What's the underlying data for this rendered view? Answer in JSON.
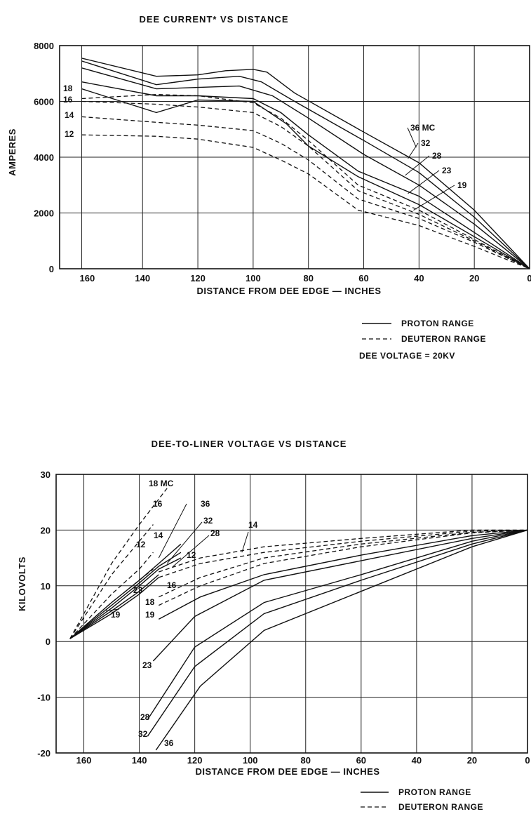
{
  "chart_data": [
    {
      "type": "line",
      "title": "DEE CURRENT* VS DISTANCE",
      "xlabel": "DISTANCE FROM DEE EDGE — INCHES",
      "ylabel": "AMPERES",
      "xlim": [
        170,
        0
      ],
      "ylim": [
        0,
        8000
      ],
      "xticks": [
        160,
        140,
        120,
        100,
        80,
        60,
        40,
        20,
        0
      ],
      "yticks": [
        0,
        2000,
        4000,
        6000,
        8000
      ],
      "grid": true,
      "legend": {
        "position": "below-right",
        "entries": [
          {
            "style": "solid",
            "label": "PROTON RANGE"
          },
          {
            "style": "dashed",
            "label": "DEUTERON RANGE"
          }
        ],
        "note": "DEE VOLTAGE = 20KV"
      },
      "series": [
        {
          "name": "36 MC",
          "style": "solid",
          "x": [
            162,
            135,
            120,
            110,
            100,
            95,
            85,
            60,
            40,
            20,
            0
          ],
          "y": [
            7550,
            6900,
            6950,
            7100,
            7150,
            7050,
            6300,
            4900,
            3800,
            2100,
            0
          ]
        },
        {
          "name": "32",
          "style": "solid",
          "x": [
            162,
            135,
            120,
            105,
            97,
            85,
            60,
            40,
            20,
            0
          ],
          "y": [
            7450,
            6600,
            6800,
            6900,
            6700,
            6000,
            4600,
            3450,
            1850,
            0
          ]
        },
        {
          "name": "28",
          "style": "solid",
          "x": [
            162,
            135,
            120,
            105,
            93,
            80,
            60,
            40,
            20,
            0
          ],
          "y": [
            7200,
            6450,
            6500,
            6550,
            6200,
            5400,
            4100,
            3000,
            1600,
            0
          ]
        },
        {
          "name": "23",
          "style": "solid",
          "x": [
            162,
            135,
            120,
            100,
            90,
            80,
            62,
            40,
            20,
            0
          ],
          "y": [
            6700,
            6200,
            6200,
            6100,
            5600,
            4800,
            3500,
            2600,
            1300,
            0
          ]
        },
        {
          "name": "19",
          "style": "solid",
          "x": [
            162,
            135,
            120,
            100,
            88,
            80,
            62,
            40,
            20,
            0
          ],
          "y": [
            6450,
            5600,
            6050,
            6000,
            5200,
            4400,
            3300,
            2300,
            1150,
            0
          ]
        },
        {
          "name": "18",
          "style": "dashed",
          "x": [
            162,
            135,
            120,
            100,
            90,
            80,
            62,
            40,
            20,
            0
          ],
          "y": [
            6100,
            6250,
            6200,
            5950,
            5400,
            4600,
            3000,
            2100,
            1050,
            0
          ]
        },
        {
          "name": "16",
          "style": "dashed",
          "x": [
            162,
            135,
            120,
            100,
            90,
            80,
            62,
            40,
            20,
            0
          ],
          "y": [
            6000,
            5900,
            5800,
            5600,
            5100,
            4400,
            2800,
            1950,
            1000,
            0
          ]
        },
        {
          "name": "14",
          "style": "dashed",
          "x": [
            162,
            135,
            120,
            100,
            90,
            80,
            62,
            40,
            20,
            0
          ],
          "y": [
            5450,
            5250,
            5150,
            4950,
            4500,
            3900,
            2500,
            1800,
            950,
            0
          ]
        },
        {
          "name": "12",
          "style": "dashed",
          "x": [
            162,
            135,
            120,
            100,
            90,
            80,
            62,
            40,
            20,
            0
          ],
          "y": [
            4800,
            4750,
            4650,
            4350,
            3900,
            3400,
            2100,
            1550,
            800,
            0
          ]
        }
      ],
      "annotations": [
        "36 MC",
        "32",
        "28",
        "23",
        "19",
        "18",
        "16",
        "14",
        "12"
      ]
    },
    {
      "type": "line",
      "title": "DEE-TO-LINER VOLTAGE VS DISTANCE",
      "xlabel": "DISTANCE FROM DEE EDGE — INCHES",
      "ylabel": "KILOVOLTS",
      "xlim": [
        170,
        0
      ],
      "ylim": [
        -20,
        30
      ],
      "xticks": [
        160,
        140,
        120,
        100,
        80,
        60,
        40,
        20,
        0
      ],
      "yticks": [
        30,
        20,
        10,
        0,
        -10,
        -20
      ],
      "grid": true,
      "legend": {
        "position": "below-right",
        "entries": [
          {
            "style": "solid",
            "label": "PROTON RANGE"
          },
          {
            "style": "dashed",
            "label": "DEUTERON RANGE"
          }
        ]
      },
      "series": [
        {
          "name": "18 MC",
          "style": "dashed",
          "x": [
            165,
            150,
            140,
            130
          ],
          "y": [
            0.5,
            14,
            21,
            27.5
          ]
        },
        {
          "name": "16",
          "style": "dashed",
          "x": [
            165,
            150,
            140,
            135
          ],
          "y": [
            0.5,
            12,
            18,
            21
          ]
        },
        {
          "name": "14",
          "style": "dashed",
          "x": [
            165,
            150,
            140,
            135
          ],
          "y": [
            0.5,
            8.5,
            13,
            16
          ]
        },
        {
          "name": "12",
          "style": "dashed",
          "x": [
            165,
            150,
            140,
            135
          ],
          "y": [
            0.5,
            7,
            11,
            13
          ]
        },
        {
          "name": "36",
          "style": "solid",
          "x": [
            165,
            150,
            140,
            133,
            125
          ],
          "y": [
            0.5,
            7,
            11,
            14,
            17.5
          ]
        },
        {
          "name": "32",
          "style": "solid",
          "x": [
            165,
            150,
            140,
            133,
            125
          ],
          "y": [
            0.5,
            6.5,
            10.5,
            13.5,
            16
          ]
        },
        {
          "name": "28",
          "style": "solid",
          "x": [
            165,
            150,
            140,
            133,
            125
          ],
          "y": [
            0.5,
            6,
            10,
            13,
            15
          ]
        },
        {
          "name": "23",
          "style": "solid",
          "x": [
            165,
            150,
            140,
            133
          ],
          "y": [
            0.5,
            5.5,
            9,
            12
          ]
        },
        {
          "name": "19",
          "style": "solid",
          "x": [
            165,
            150,
            140,
            133
          ],
          "y": [
            0.5,
            5,
            8.5,
            11.5
          ]
        },
        {
          "name": "14",
          "style": "dashed",
          "x": [
            133,
            118,
            95,
            60,
            20,
            0
          ],
          "y": [
            12.5,
            15,
            17,
            18.5,
            20,
            20
          ]
        },
        {
          "name": "12",
          "style": "dashed",
          "x": [
            133,
            118,
            95,
            60,
            20,
            0
          ],
          "y": [
            11.5,
            14,
            16,
            18,
            19.8,
            20
          ]
        },
        {
          "name": "16",
          "style": "dashed",
          "x": [
            133,
            118,
            95,
            60,
            20,
            0
          ],
          "y": [
            8,
            11.5,
            15,
            17.5,
            19.6,
            20
          ]
        },
        {
          "name": "18",
          "style": "dashed",
          "x": [
            133,
            118,
            95,
            60,
            20,
            0
          ],
          "y": [
            6.5,
            10,
            14,
            17,
            19.5,
            20
          ]
        },
        {
          "name": "19",
          "style": "solid",
          "x": [
            133,
            118,
            95,
            60,
            20,
            0
          ],
          "y": [
            4,
            8,
            12,
            15.5,
            19,
            20
          ]
        },
        {
          "name": "23",
          "style": "solid",
          "x": [
            135,
            120,
            95,
            60,
            20,
            0
          ],
          "y": [
            -3.5,
            4.5,
            11,
            14.5,
            18.5,
            20
          ]
        },
        {
          "name": "28",
          "style": "solid",
          "x": [
            137,
            120,
            95,
            60,
            20,
            0
          ],
          "y": [
            -14,
            -1,
            7,
            12,
            18,
            20
          ]
        },
        {
          "name": "32",
          "style": "solid",
          "x": [
            137,
            120,
            95,
            60,
            20,
            0
          ],
          "y": [
            -17,
            -4.5,
            5,
            11,
            17.5,
            20
          ]
        },
        {
          "name": "36",
          "style": "solid",
          "x": [
            134,
            118,
            95,
            60,
            20,
            0
          ],
          "y": [
            -19.5,
            -8,
            2,
            9,
            17,
            20
          ]
        }
      ],
      "annotations": [
        "18 MC",
        "16",
        "14",
        "12",
        "36",
        "32",
        "28",
        "14",
        "12",
        "16",
        "18",
        "19",
        "23",
        "19",
        "23",
        "28",
        "32",
        "36"
      ]
    }
  ]
}
